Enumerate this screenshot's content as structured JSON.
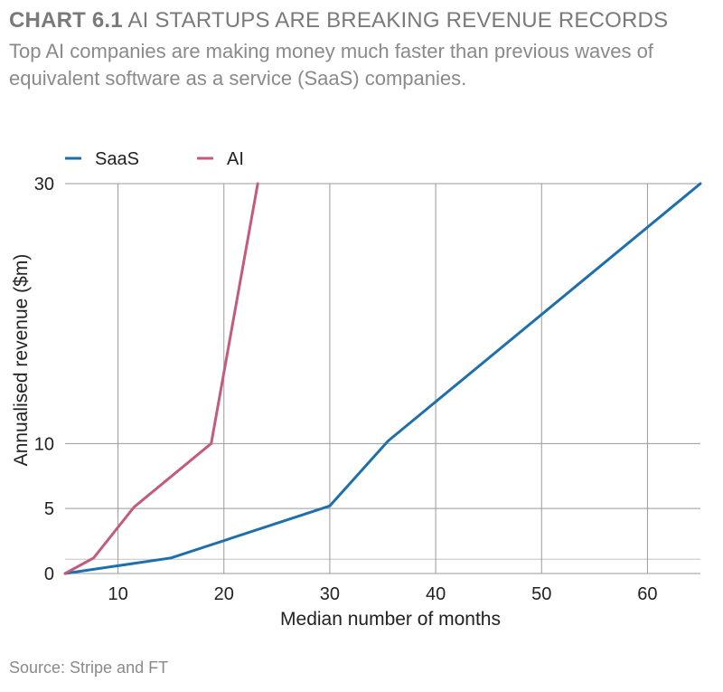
{
  "header": {
    "chart_number": "CHART 6.1",
    "title": "AI STARTUPS ARE BREAKING REVENUE RECORDS",
    "subtitle": "Top AI companies are making money much faster than previous waves of equivalent software as a service (SaaS) companies."
  },
  "source": "Source: Stripe and FT",
  "colors": {
    "saas": "#1f6fab",
    "ai": "#c25b7e",
    "grid": "#9a9a9a",
    "text": "#222222"
  },
  "chart_data": {
    "type": "line",
    "xlabel": "Median number of months",
    "ylabel": "Annualised revenue ($m)",
    "xlim": [
      5,
      65
    ],
    "ylim": [
      0,
      30
    ],
    "xticks": [
      10,
      20,
      30,
      40,
      50,
      60
    ],
    "yticks": [
      0,
      5,
      10,
      30
    ],
    "grid": true,
    "legend": "top-left",
    "series": [
      {
        "name": "SaaS",
        "color": "#1f6fab",
        "x": [
          5,
          15,
          30,
          35.5,
          65
        ],
        "y": [
          0,
          1.2,
          5.2,
          10.2,
          30
        ]
      },
      {
        "name": "AI",
        "color": "#c25b7e",
        "x": [
          5,
          7.7,
          11.5,
          18.8,
          23.2
        ],
        "y": [
          0,
          1.2,
          5.1,
          10.0,
          30
        ]
      }
    ]
  }
}
